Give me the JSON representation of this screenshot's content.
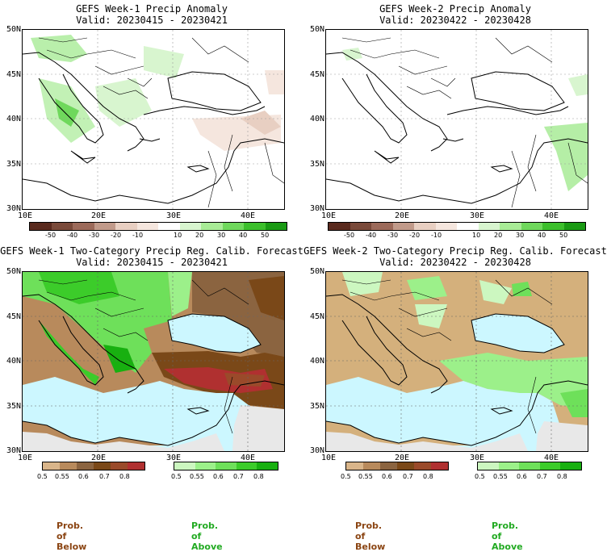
{
  "panels": [
    {
      "title": "GEFS Week-1 Precip Anomaly",
      "valid": "Valid: 20230415 - 20230421"
    },
    {
      "title": "GEFS Week-2 Precip Anomaly",
      "valid": "Valid: 20230422 - 20230428"
    },
    {
      "title": "GEFS Week-1 Two-Category Precip Reg. Calib. Forecast",
      "valid": "Valid: 20230415 - 20230421"
    },
    {
      "title": "GEFS Week-2 Two-Category Precip Reg. Calib. Forecast",
      "valid": "Valid: 20230422 - 20230428"
    }
  ],
  "lat_labels": [
    "50N",
    "45N",
    "40N",
    "35N",
    "30N"
  ],
  "lon_labels": [
    "10E",
    "20E",
    "30E",
    "40E"
  ],
  "anomaly_colorbar": {
    "labels": [
      "-50",
      "-40",
      "-30",
      "-20",
      "-10",
      "10",
      "20",
      "30",
      "40",
      "50"
    ],
    "colors": [
      "#5a2a1e",
      "#7a4a3a",
      "#9c6a5a",
      "#c19a8a",
      "#e8cfc2",
      "#f5e6de",
      "#ffffff",
      "#d8f5cf",
      "#a8eb96",
      "#6fd85c",
      "#3cbf2c",
      "#1a9a14"
    ]
  },
  "prob_below_colorbar": {
    "labels": [
      "0.5",
      "0.55",
      "0.6",
      "0.7",
      "0.8"
    ],
    "colors": [
      "#d9b58a",
      "#b88a5c",
      "#8b6440",
      "#7a4818",
      "#9a4a2a",
      "#b03030"
    ]
  },
  "prob_above_colorbar": {
    "labels": [
      "0.5",
      "0.55",
      "0.6",
      "0.7",
      "0.8"
    ],
    "colors": [
      "#ccf7c0",
      "#9cf08a",
      "#6ee05a",
      "#3ccc2a",
      "#18b010"
    ]
  },
  "footer": {
    "below": "Prob. of Below",
    "above": "Prob. of Above"
  },
  "colors": {
    "sea": "#ccf7ff",
    "land_nodata": "#e8e8e8",
    "below_tan": "#d4b07c",
    "above_green": "#8ee87a"
  }
}
